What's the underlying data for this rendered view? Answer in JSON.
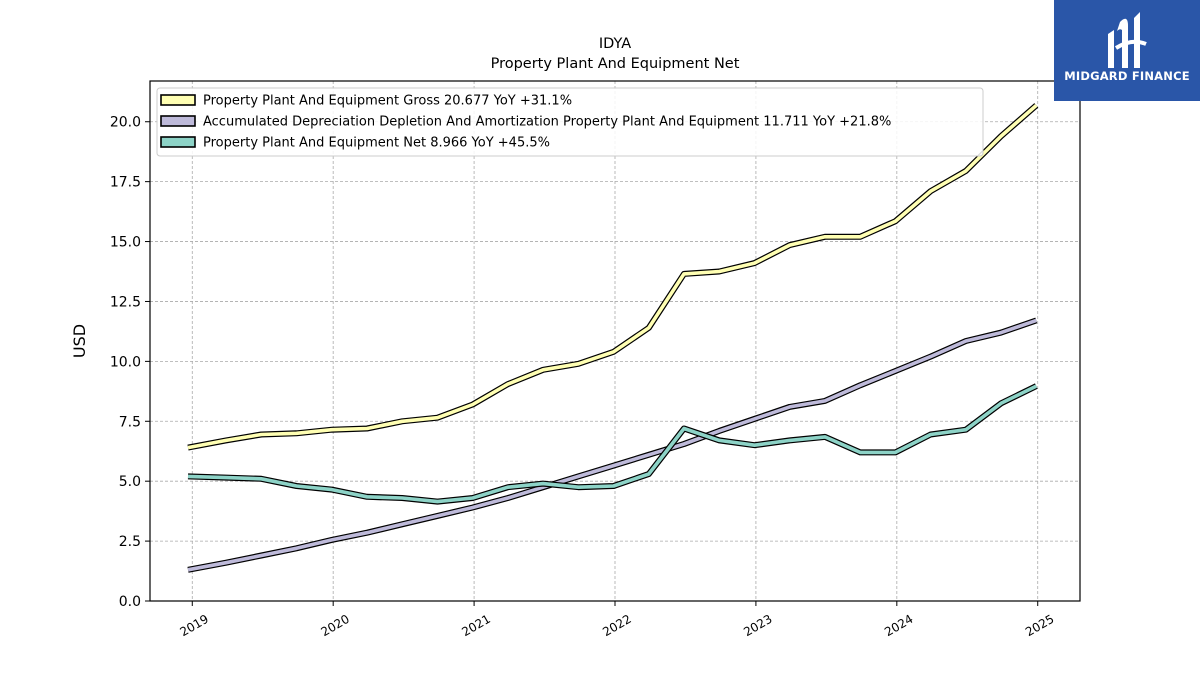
{
  "brand": {
    "name": "MIDGARD FINANCE"
  },
  "chart_data": {
    "type": "line",
    "title": "IDYA",
    "subtitle": "Property Plant And Equipment Net",
    "xlabel": "",
    "ylabel": "USD",
    "x_ticks": [
      "2019",
      "2020",
      "2021",
      "2022",
      "2023",
      "2024",
      "2025"
    ],
    "y_ticks": [
      "0.0",
      "2.5",
      "5.0",
      "7.5",
      "10.0",
      "12.5",
      "15.0",
      "17.5",
      "20.0"
    ],
    "xlim": [
      2018.7,
      2025.3
    ],
    "ylim": [
      0,
      21.7
    ],
    "grid": true,
    "legend_position": "top-left",
    "x": [
      2018.97,
      2019.24,
      2019.49,
      2019.74,
      2019.99,
      2020.24,
      2020.49,
      2020.74,
      2020.99,
      2021.24,
      2021.49,
      2021.74,
      2021.99,
      2022.24,
      2022.49,
      2022.74,
      2022.99,
      2023.24,
      2023.49,
      2023.74,
      2023.99,
      2024.24,
      2024.49,
      2024.74,
      2024.99
    ],
    "series": [
      {
        "name": "Property Plant And Equipment Gross",
        "legend_label": "Property Plant And Equipment Gross  20.677 YoY +31.1%",
        "color": "#ffffb3",
        "values": [
          6.4,
          6.7,
          6.95,
          7.0,
          7.15,
          7.2,
          7.5,
          7.65,
          8.2,
          9.05,
          9.65,
          9.9,
          10.4,
          11.4,
          13.65,
          13.75,
          14.1,
          14.85,
          15.2,
          15.2,
          15.85,
          17.1,
          17.95,
          19.4,
          20.68
        ]
      },
      {
        "name": "Accumulated Depreciation Depletion And Amortization Property Plant And Equipment",
        "legend_label": "Accumulated Depreciation Depletion And Amortization Property Plant And Equipment  11.711 YoY +21.8%",
        "color": "#bebada",
        "values": [
          1.3,
          1.6,
          1.9,
          2.2,
          2.55,
          2.85,
          3.2,
          3.55,
          3.9,
          4.3,
          4.75,
          5.2,
          5.65,
          6.1,
          6.55,
          7.1,
          7.6,
          8.1,
          8.35,
          9.0,
          9.6,
          10.2,
          10.85,
          11.2,
          11.71
        ]
      },
      {
        "name": "Property Plant And Equipment Net",
        "legend_label": "Property Plant And Equipment Net  8.966 YoY +45.5%",
        "color": "#8dd3c7",
        "values": [
          5.2,
          5.15,
          5.1,
          4.8,
          4.65,
          4.35,
          4.3,
          4.15,
          4.3,
          4.75,
          4.9,
          4.75,
          4.8,
          5.3,
          7.2,
          6.7,
          6.5,
          6.7,
          6.85,
          6.2,
          6.2,
          6.95,
          7.15,
          8.25,
          8.97
        ]
      }
    ]
  }
}
